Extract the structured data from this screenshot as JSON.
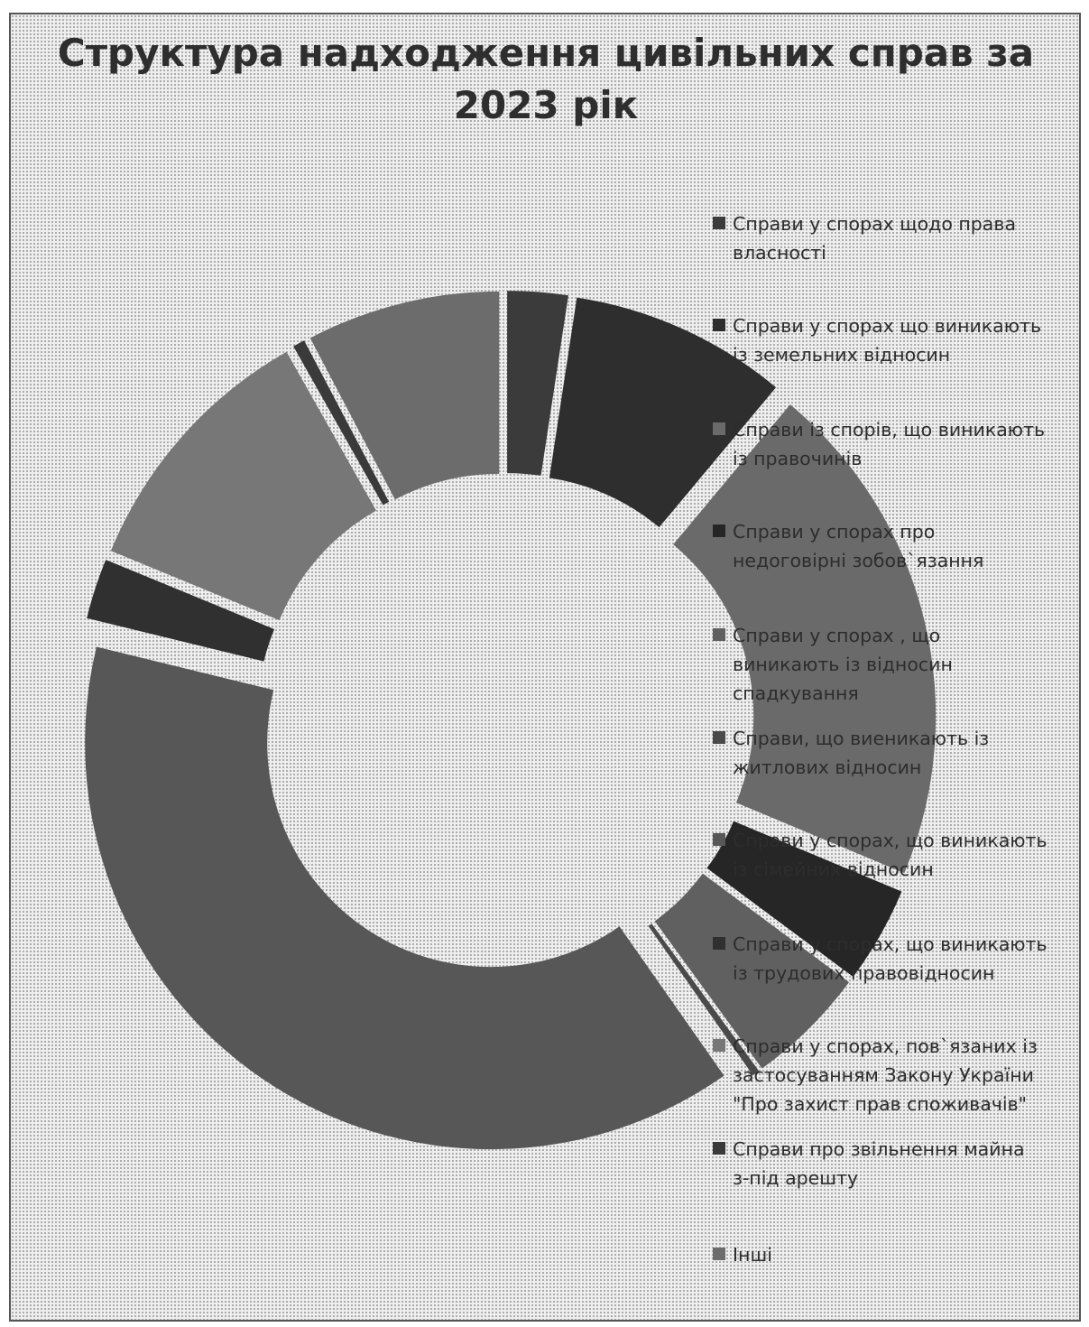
{
  "chart_data": {
    "type": "pie",
    "style": "donut, exploded slices",
    "title": "Структура надходження  цивільних справ за 2023 рік",
    "title_lines": [
      "Структура надходження  цивільних справ за",
      "2023 рік"
    ],
    "categories": [
      "Справи у спорах щодо права власності",
      "Справи у спорах що виникають із земельних відносин",
      "Справи із спорів, що виникають із правочинів",
      "Справи у спорах про недоговірні зобов`язання",
      "Справи у спорах , що виникають із відносин спадкування",
      "Справи, що виеникають із житлових відносин",
      "Справи у спорах, що виникають із сімейних відносин",
      "Справи у спорах, що виникають із трудових правовідносин",
      "Справи у спорах, пов`язаних із застосуванням Закону України \"Про захист прав споживачів\"",
      "Справи про звільнення майна з-під арешту",
      "Інші"
    ],
    "values": [
      2.5,
      9,
      21,
      4,
      5,
      0.3,
      40,
      2.5,
      11,
      0.5,
      8
    ],
    "colors": [
      "#3b3b3b",
      "#2e2e2e",
      "#6a6a6a",
      "#262626",
      "#606060",
      "#4a4a4a",
      "#575757",
      "#303030",
      "#777777",
      "#3a3a3a",
      "#6c6c6c"
    ],
    "legend_position": "right",
    "legend_labels": [
      [
        "Справи у спорах щодо права",
        "власності"
      ],
      [
        "Справи у спорах що виникають",
        "із земельних відносин"
      ],
      [
        "Справи із спорів, що виникають",
        "із правочинів"
      ],
      [
        "Справи у спорах про",
        "недоговірні зобов`язання"
      ],
      [
        "Справи у спорах , що",
        "виникають із відносин",
        "спадкування"
      ],
      [
        "Справи, що виеникають із",
        "житлових відносин"
      ],
      [
        "Справи у спорах, що виникають",
        "із сімейних відносин"
      ],
      [
        "Справи у спорах, що виникають",
        "із трудових правовідносин"
      ],
      [
        "Справи у спорах, пов`язаних із",
        "застосуванням Закону України",
        "\"Про захист прав споживачів\""
      ],
      [
        "Справи про звільнення майна",
        "з-під арешту"
      ],
      [
        "Інші"
      ]
    ]
  }
}
